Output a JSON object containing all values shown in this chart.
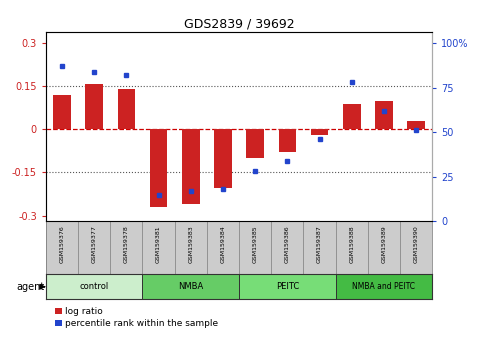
{
  "title": "GDS2839 / 39692",
  "samples": [
    "GSM159376",
    "GSM159377",
    "GSM159378",
    "GSM159381",
    "GSM159383",
    "GSM159384",
    "GSM159385",
    "GSM159386",
    "GSM159387",
    "GSM159388",
    "GSM159389",
    "GSM159390"
  ],
  "log_ratio": [
    0.12,
    0.16,
    0.14,
    -0.27,
    -0.26,
    -0.205,
    -0.1,
    -0.08,
    -0.02,
    0.09,
    0.1,
    0.03
  ],
  "percentile_rank": [
    87,
    84,
    82,
    15,
    17,
    18,
    28,
    34,
    46,
    78,
    62,
    51
  ],
  "groups": [
    {
      "label": "control",
      "start": 0,
      "end": 3,
      "color": "#d4f5d4"
    },
    {
      "label": "NMBA",
      "start": 3,
      "end": 6,
      "color": "#66cc66"
    },
    {
      "label": "PEITC",
      "start": 6,
      "end": 9,
      "color": "#88dd88"
    },
    {
      "label": "NMBA and PEITC",
      "start": 9,
      "end": 12,
      "color": "#44bb44"
    }
  ],
  "ylim_left": [
    -0.32,
    0.34
  ],
  "ylim_right": [
    0,
    106.25
  ],
  "left_ticks": [
    -0.3,
    -0.15,
    0,
    0.15,
    0.3
  ],
  "right_ticks": [
    0,
    25,
    50,
    75,
    100
  ],
  "right_tick_labels": [
    "0",
    "25",
    "50",
    "75",
    "100%"
  ],
  "bar_color": "#cc2222",
  "dot_color": "#2244cc",
  "background_color": "#ffffff",
  "zero_line_color": "#cc0000",
  "hline_color": "#555555",
  "label_bg": "#cccccc",
  "group_colors": [
    "#cceecc",
    "#66cc66",
    "#77dd77",
    "#44bb44"
  ]
}
